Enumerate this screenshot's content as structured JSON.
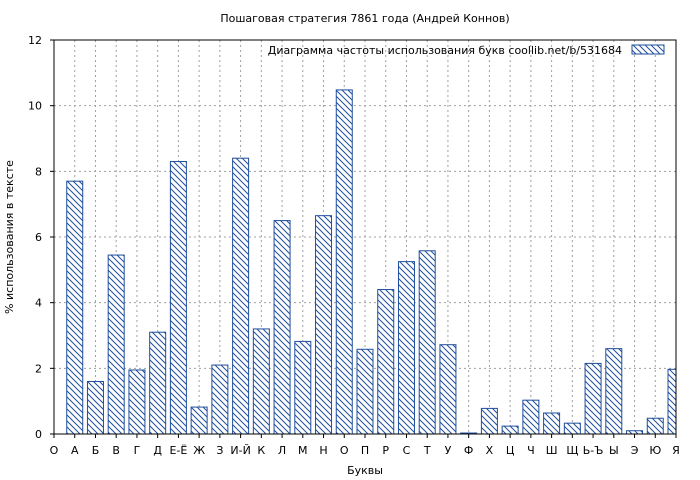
{
  "chart_data": {
    "type": "bar",
    "title": "Пошаговая стратегия 7861 года (Андрей Коннов)",
    "xlabel": "Буквы",
    "ylabel": "% использования в тексте",
    "legend": "Диаграмма частоты использования букв  coollib.net/b/531684",
    "legend_position": "top-right",
    "ylim": [
      0,
      12
    ],
    "yticks": [
      0,
      2,
      4,
      6,
      8,
      10,
      12
    ],
    "grid": true,
    "categories": [
      "О",
      "А",
      "Б",
      "В",
      "Г",
      "Д",
      "Е-Ё",
      "Ж",
      "З",
      "И-Й",
      "К",
      "Л",
      "М",
      "Н",
      "О",
      "П",
      "Р",
      "С",
      "Т",
      "У",
      "Ф",
      "Х",
      "Ц",
      "Ч",
      "Ш",
      "Щ",
      "Ь-Ъ",
      "Ы",
      "Э",
      "Ю",
      "Я"
    ],
    "values": [
      null,
      7.7,
      1.6,
      5.45,
      1.95,
      3.1,
      8.3,
      0.82,
      2.1,
      8.4,
      3.2,
      6.5,
      2.82,
      6.65,
      10.48,
      2.58,
      4.4,
      5.25,
      5.58,
      2.72,
      0.03,
      0.78,
      0.24,
      1.03,
      0.64,
      0.33,
      2.15,
      2.6,
      0.1,
      0.48,
      1.97
    ],
    "colors": {
      "bar_stroke": "#1f4f9e",
      "hatch": "#1f4f9e",
      "grid": "#a0a0a0",
      "axis": "#000000"
    }
  }
}
